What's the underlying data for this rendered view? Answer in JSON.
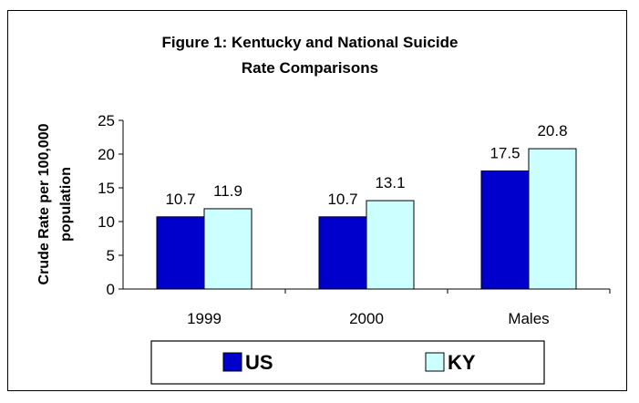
{
  "chart_data": {
    "type": "bar",
    "title_line1": "Figure 1: Kentucky and National Suicide",
    "title_line2": "Rate Comparisons",
    "xlabel": "",
    "ylabel_line1": "Crude Rate per 100,000",
    "ylabel_line2": "population",
    "categories": [
      "1999",
      "2000",
      "Males"
    ],
    "ylim": [
      0,
      25
    ],
    "yticks": [
      "0",
      "5",
      "10",
      "15",
      "20",
      "25"
    ],
    "series": [
      {
        "name": "US",
        "values": [
          10.7,
          10.7,
          17.5
        ],
        "labels": [
          "10.7",
          "10.7",
          "17.5"
        ],
        "color": "#0000cc"
      },
      {
        "name": "KY",
        "values": [
          11.9,
          13.1,
          20.8
        ],
        "labels": [
          "11.9",
          "13.1",
          "20.8"
        ],
        "color": "#ccffff"
      }
    ],
    "grid": false,
    "legend": "bottom",
    "border_color": "#000000"
  }
}
